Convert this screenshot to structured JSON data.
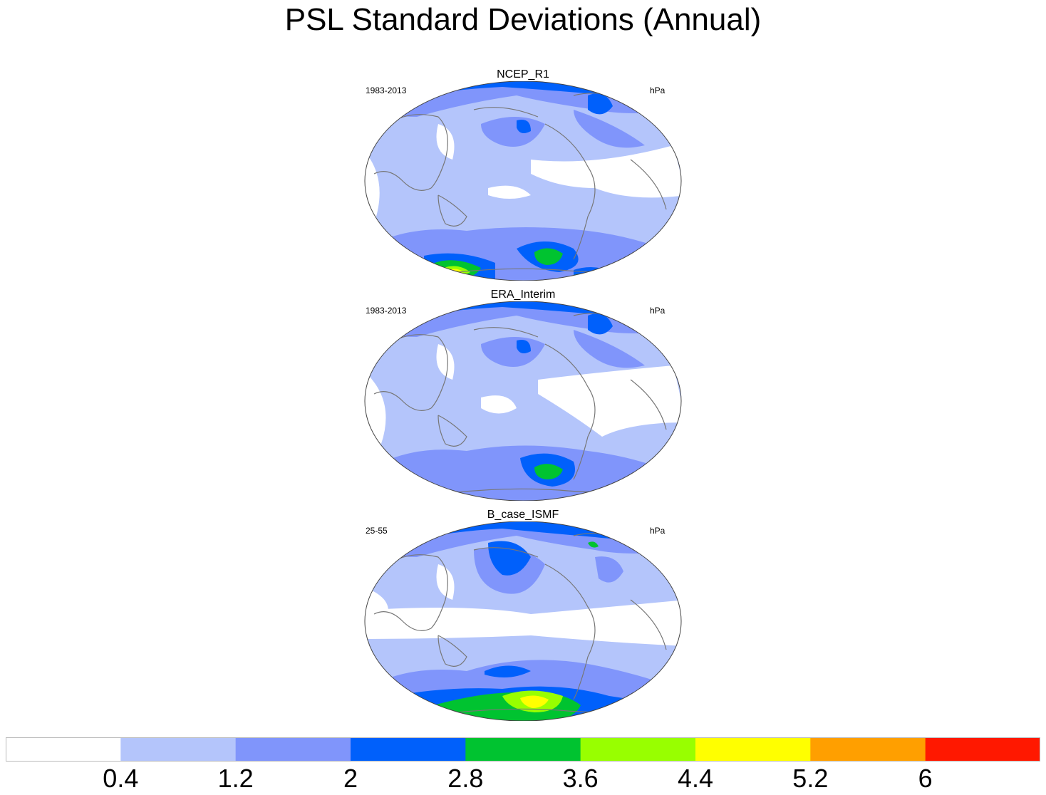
{
  "title": "PSL Standard Deviations (Annual)",
  "panels": [
    {
      "title": "NCEP_R1",
      "left_label": "1983-2013",
      "right_label": "hPa"
    },
    {
      "title": "ERA_Interim",
      "left_label": "1983-2013",
      "right_label": "hPa"
    },
    {
      "title": "B_case_ISMF",
      "left_label": "25-55",
      "right_label": "hPa"
    }
  ],
  "colorbar": {
    "labels": [
      "0.4",
      "1.2",
      "2",
      "2.8",
      "3.6",
      "4.4",
      "5.2",
      "6"
    ],
    "colors": [
      "#ffffff",
      "#b4c5fb",
      "#8095fb",
      "#0060fb",
      "#00c330",
      "#98ff00",
      "#ffff00",
      "#ff9f00",
      "#ff1800"
    ]
  }
}
